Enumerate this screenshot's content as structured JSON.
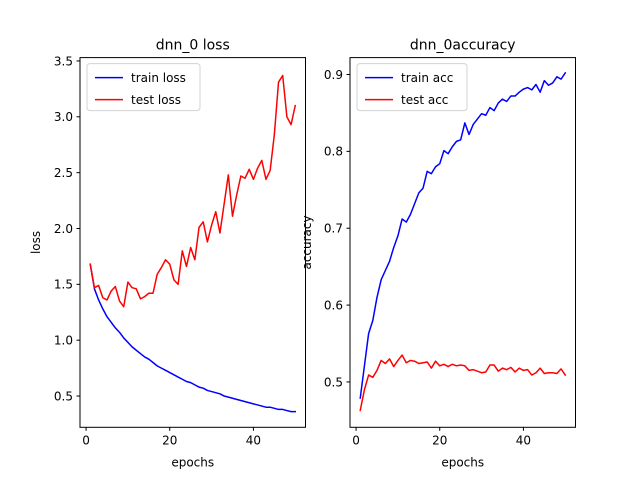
{
  "chart_data": [
    {
      "type": "line",
      "title": "dnn_0 loss",
      "xlabel": "epochs",
      "ylabel": "loss",
      "xlim": [
        -1.45,
        52.45
      ],
      "ylim": [
        0.22,
        3.53
      ],
      "xticks": [
        0,
        20,
        40
      ],
      "yticks": [
        0.5,
        1.0,
        1.5,
        2.0,
        2.5,
        3.0,
        3.5
      ],
      "ytick_labels": [
        "0.5",
        "1.0",
        "1.5",
        "2.0",
        "2.5",
        "3.0",
        "3.5"
      ],
      "legend_loc": "upper-left",
      "x": [
        1,
        2,
        3,
        4,
        5,
        6,
        7,
        8,
        9,
        10,
        11,
        12,
        13,
        14,
        15,
        16,
        17,
        18,
        19,
        20,
        21,
        22,
        23,
        24,
        25,
        26,
        27,
        28,
        29,
        30,
        31,
        32,
        33,
        34,
        35,
        36,
        37,
        38,
        39,
        40,
        41,
        42,
        43,
        44,
        45,
        46,
        47,
        48,
        49,
        50
      ],
      "series": [
        {
          "name": "train loss",
          "color": "#0000ff",
          "values": [
            1.68,
            1.46,
            1.36,
            1.28,
            1.21,
            1.16,
            1.11,
            1.07,
            1.02,
            0.98,
            0.94,
            0.91,
            0.88,
            0.85,
            0.83,
            0.8,
            0.77,
            0.75,
            0.73,
            0.71,
            0.69,
            0.67,
            0.65,
            0.63,
            0.62,
            0.6,
            0.58,
            0.57,
            0.55,
            0.54,
            0.53,
            0.52,
            0.5,
            0.49,
            0.48,
            0.47,
            0.46,
            0.45,
            0.44,
            0.43,
            0.42,
            0.41,
            0.4,
            0.4,
            0.39,
            0.38,
            0.38,
            0.37,
            0.36,
            0.36
          ]
        },
        {
          "name": "test loss",
          "color": "#ff0000",
          "values": [
            1.68,
            1.47,
            1.49,
            1.38,
            1.36,
            1.44,
            1.48,
            1.35,
            1.3,
            1.52,
            1.47,
            1.46,
            1.37,
            1.39,
            1.42,
            1.42,
            1.59,
            1.65,
            1.72,
            1.68,
            1.54,
            1.5,
            1.8,
            1.66,
            1.83,
            1.72,
            2.01,
            2.06,
            1.88,
            2.03,
            2.15,
            1.96,
            2.22,
            2.48,
            2.11,
            2.3,
            2.47,
            2.45,
            2.53,
            2.44,
            2.54,
            2.61,
            2.44,
            2.52,
            2.84,
            3.31,
            3.37,
            3.0,
            2.93,
            3.1
          ]
        }
      ]
    },
    {
      "type": "line",
      "title": "dnn_0accuracy",
      "xlabel": "epochs",
      "ylabel": "accuracy",
      "xlim": [
        -1.45,
        52.45
      ],
      "ylim": [
        0.441,
        0.922
      ],
      "xticks": [
        0,
        20,
        40
      ],
      "yticks": [
        0.5,
        0.6,
        0.7,
        0.8,
        0.9
      ],
      "ytick_labels": [
        "0.5",
        "0.6",
        "0.7",
        "0.8",
        "0.9"
      ],
      "legend_loc": "upper-left",
      "x": [
        1,
        2,
        3,
        4,
        5,
        6,
        7,
        8,
        9,
        10,
        11,
        12,
        13,
        14,
        15,
        16,
        17,
        18,
        19,
        20,
        21,
        22,
        23,
        24,
        25,
        26,
        27,
        28,
        29,
        30,
        31,
        32,
        33,
        34,
        35,
        36,
        37,
        38,
        39,
        40,
        41,
        42,
        43,
        44,
        45,
        46,
        47,
        48,
        49,
        50
      ],
      "series": [
        {
          "name": "train acc",
          "color": "#0000ff",
          "values": [
            0.479,
            0.521,
            0.563,
            0.58,
            0.61,
            0.633,
            0.645,
            0.657,
            0.675,
            0.69,
            0.712,
            0.708,
            0.718,
            0.732,
            0.746,
            0.752,
            0.774,
            0.771,
            0.78,
            0.784,
            0.801,
            0.797,
            0.806,
            0.813,
            0.815,
            0.837,
            0.822,
            0.835,
            0.842,
            0.849,
            0.847,
            0.857,
            0.853,
            0.863,
            0.868,
            0.865,
            0.872,
            0.872,
            0.877,
            0.881,
            0.883,
            0.88,
            0.887,
            0.877,
            0.892,
            0.886,
            0.889,
            0.897,
            0.894,
            0.902
          ]
        },
        {
          "name": "test acc",
          "color": "#ff0000",
          "values": [
            0.463,
            0.49,
            0.509,
            0.506,
            0.515,
            0.528,
            0.524,
            0.53,
            0.52,
            0.528,
            0.535,
            0.525,
            0.528,
            0.527,
            0.524,
            0.525,
            0.526,
            0.518,
            0.527,
            0.521,
            0.523,
            0.52,
            0.523,
            0.521,
            0.522,
            0.521,
            0.515,
            0.516,
            0.514,
            0.512,
            0.513,
            0.522,
            0.522,
            0.514,
            0.518,
            0.516,
            0.519,
            0.513,
            0.518,
            0.515,
            0.516,
            0.509,
            0.512,
            0.518,
            0.511,
            0.512,
            0.512,
            0.511,
            0.517,
            0.509
          ]
        }
      ]
    }
  ]
}
